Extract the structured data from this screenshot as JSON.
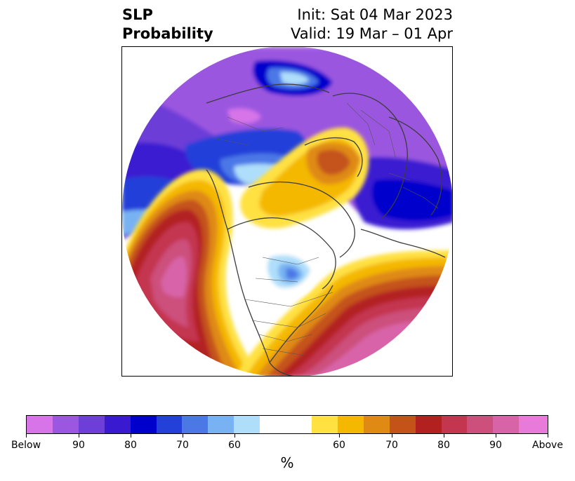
{
  "header": {
    "title_line1": "SLP",
    "title_line2": "Probability",
    "init_text": "Init: Sat 04 Mar 2023",
    "valid_text": "Valid: 19 Mar – 01 Apr"
  },
  "colorbar": {
    "colors": [
      "#d774e8",
      "#9b57e0",
      "#6d3ed8",
      "#3a1ad1",
      "#0000cc",
      "#2340d9",
      "#4c78e6",
      "#78b2f2",
      "#afdefa",
      "#ffffff",
      "#ffffff",
      "#ffe142",
      "#f4b800",
      "#df8a12",
      "#c4531a",
      "#b32020",
      "#c43550",
      "#cc4f7c",
      "#d864a8",
      "#e87ad9"
    ],
    "tick_labels": [
      "Below",
      "90",
      "80",
      "70",
      "60",
      "60",
      "70",
      "80",
      "90",
      "Above"
    ],
    "units_label": "%"
  },
  "map": {
    "projection": "north-polar-stereographic",
    "variable": "SLP probability",
    "below_color": "#6d3ed8",
    "above_color": "#d864a8"
  }
}
